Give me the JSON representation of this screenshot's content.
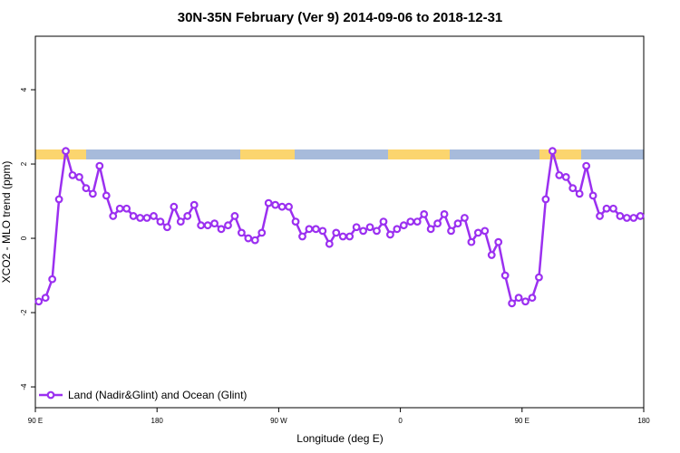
{
  "chart_data": {
    "type": "line",
    "title": "30N-35N February (Ver 9)   2014-09-06 to 2018-12-31",
    "xlabel": "Longitude (deg E)",
    "ylabel": "XCO2 - MLO trend (ppm)",
    "xlim": [
      90,
      540
    ],
    "ylim": [
      -4.56,
      5.44
    ],
    "xticks": [
      {
        "value": 90,
        "label": "90 E"
      },
      180,
      {
        "value": 270,
        "label": "90 W"
      },
      {
        "value": 360,
        "label": "0"
      },
      {
        "value": 450,
        "label": "90 E"
      },
      {
        "value": 540,
        "label": "180"
      }
    ],
    "yticks": [
      -4,
      -2,
      0,
      2,
      4
    ],
    "legend": "bottom-left",
    "x": [
      92.5,
      97.5,
      102.5,
      107.5,
      112.5,
      117.5,
      122.5,
      127.5,
      132.5,
      137.5,
      142.5,
      147.5,
      152.5,
      157.5,
      162.5,
      167.5,
      172.5,
      177.5,
      182.5,
      187.5,
      192.5,
      197.5,
      202.5,
      207.5,
      212.5,
      217.5,
      222.5,
      227.5,
      232.5,
      237.5,
      242.5,
      247.5,
      252.5,
      257.5,
      262.5,
      267.5,
      272.5,
      277.5,
      282.5,
      287.5,
      292.5,
      297.5,
      302.5,
      307.5,
      312.5,
      317.5,
      322.5,
      327.5,
      332.5,
      337.5,
      342.5,
      347.5,
      352.5,
      357.5,
      362.5,
      367.5,
      372.5,
      377.5,
      382.5,
      387.5,
      392.5,
      397.5,
      402.5,
      407.5,
      412.5,
      417.5,
      422.5,
      427.5,
      432.5,
      437.5,
      442.5,
      447.5,
      452.5,
      457.5,
      462.5,
      467.5,
      472.5,
      477.5,
      482.5,
      487.5,
      492.5,
      497.5,
      502.5,
      507.5,
      512.5,
      517.5,
      522.5,
      527.5,
      532.5,
      537.5
    ],
    "series": [
      {
        "name": "Land (Nadir&Glint) and Ocean (Glint)",
        "color": "#9b30f0",
        "values": [
          -1.7,
          -1.6,
          -1.1,
          1.05,
          2.35,
          1.7,
          1.65,
          1.35,
          1.2,
          1.95,
          1.15,
          0.6,
          0.8,
          0.8,
          0.6,
          0.55,
          0.55,
          0.6,
          0.45,
          0.3,
          0.85,
          0.45,
          0.6,
          0.9,
          0.35,
          0.35,
          0.4,
          0.25,
          0.35,
          0.6,
          0.15,
          0.0,
          -0.05,
          0.15,
          0.95,
          0.9,
          0.85,
          0.85,
          0.45,
          0.05,
          0.25,
          0.25,
          0.2,
          -0.15,
          0.15,
          0.05,
          0.05,
          0.3,
          0.2,
          0.3,
          0.2,
          0.45,
          0.1,
          0.25,
          0.35,
          0.45,
          0.45,
          0.65,
          0.25,
          0.4,
          0.65,
          0.2,
          0.4,
          0.55,
          -0.1,
          0.15,
          0.2,
          -0.45,
          -0.1,
          -1.0,
          -1.75,
          -1.6,
          -1.7,
          -1.6,
          -1.05,
          1.05,
          2.35,
          1.7,
          1.65,
          1.35,
          1.2,
          1.95,
          1.15,
          0.6,
          0.8,
          0.8,
          0.6,
          0.55,
          0.55,
          0.6
        ]
      }
    ]
  }
}
